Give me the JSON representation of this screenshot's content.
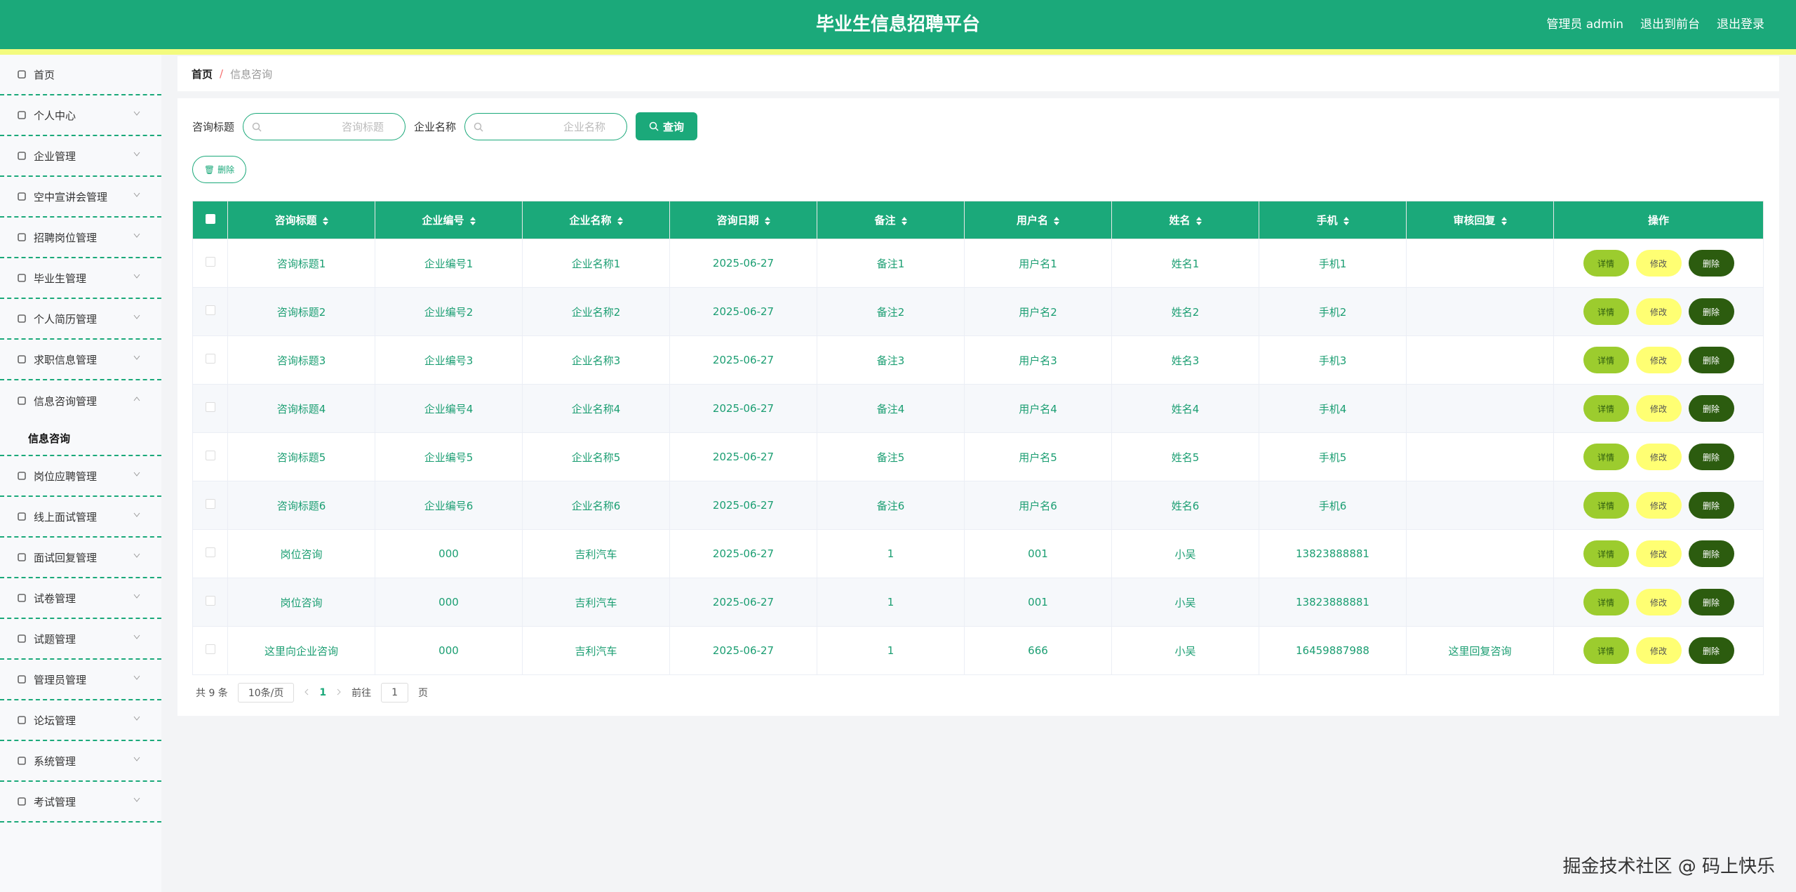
{
  "header": {
    "title": "毕业生信息招聘平台",
    "user": "管理员 admin",
    "links": [
      "退出到前台",
      "退出登录"
    ]
  },
  "menu": [
    {
      "label": "首页"
    },
    {
      "label": "个人中心"
    },
    {
      "label": "企业管理"
    },
    {
      "label": "空中宣讲会管理"
    },
    {
      "label": "招聘岗位管理"
    },
    {
      "label": "毕业生管理"
    },
    {
      "label": "个人简历管理"
    },
    {
      "label": "求职信息管理"
    },
    {
      "label": "信息咨询管理",
      "children": [
        "信息咨询"
      ]
    },
    {
      "label": "岗位应聘管理"
    },
    {
      "label": "线上面试管理"
    },
    {
      "label": "面试回复管理"
    },
    {
      "label": "试卷管理"
    },
    {
      "label": "试题管理"
    },
    {
      "label": "管理员管理"
    },
    {
      "label": "论坛管理"
    },
    {
      "label": "系统管理"
    },
    {
      "label": "考试管理"
    }
  ],
  "breadcrumb": {
    "items": [
      "首页",
      "信息咨询"
    ],
    "separator": "/"
  },
  "search": {
    "fields": [
      {
        "label": "咨询标题",
        "placeholder": "咨询标题"
      },
      {
        "label": "企业名称",
        "placeholder": "企业名称"
      }
    ],
    "button": "查询"
  },
  "toolbar": {
    "delete": "删除"
  },
  "table": {
    "columns": [
      "咨询标题",
      "企业编号",
      "企业名称",
      "咨询日期",
      "备注",
      "用户名",
      "姓名",
      "手机",
      "审核回复",
      "操作"
    ],
    "rows": [
      [
        "咨询标题1",
        "企业编号1",
        "企业名称1",
        "2025-06-27",
        "备注1",
        "用户名1",
        "姓名1",
        "手机1",
        null
      ],
      [
        "咨询标题2",
        "企业编号2",
        "企业名称2",
        "2025-06-27",
        "备注2",
        "用户名2",
        "姓名2",
        "手机2",
        null
      ],
      [
        "咨询标题3",
        "企业编号3",
        "企业名称3",
        "2025-06-27",
        "备注3",
        "用户名3",
        "姓名3",
        "手机3",
        null
      ],
      [
        "咨询标题4",
        "企业编号4",
        "企业名称4",
        "2025-06-27",
        "备注4",
        "用户名4",
        "姓名4",
        "手机4",
        null
      ],
      [
        "咨询标题5",
        "企业编号5",
        "企业名称5",
        "2025-06-27",
        "备注5",
        "用户名5",
        "姓名5",
        "手机5",
        null
      ],
      [
        "咨询标题6",
        "企业编号6",
        "企业名称6",
        "2025-06-27",
        "备注6",
        "用户名6",
        "姓名6",
        "手机6",
        null
      ],
      [
        "岗位咨询",
        "000",
        "吉利汽车",
        "2025-06-27",
        "1",
        "001",
        "小吴",
        "13823888881",
        null
      ],
      [
        "岗位咨询",
        "000",
        "吉利汽车",
        "2025-06-27",
        "1",
        "001",
        "小吴",
        "13823888881",
        null
      ],
      [
        "这里向企业咨询",
        "000",
        "吉利汽车",
        "2025-06-27",
        "1",
        "666",
        "小吴",
        "16459887988",
        "这里回复咨询"
      ]
    ],
    "row_actions": [
      "详情",
      "修改",
      "删除"
    ]
  },
  "pagination": {
    "total": "共 9 条",
    "page_size": "10条/页",
    "pages": [
      "1"
    ],
    "goto": "前往",
    "goto_value": "1",
    "goto_suffix": "页"
  },
  "watermark": "掘金技术社区 @ 码上快乐"
}
